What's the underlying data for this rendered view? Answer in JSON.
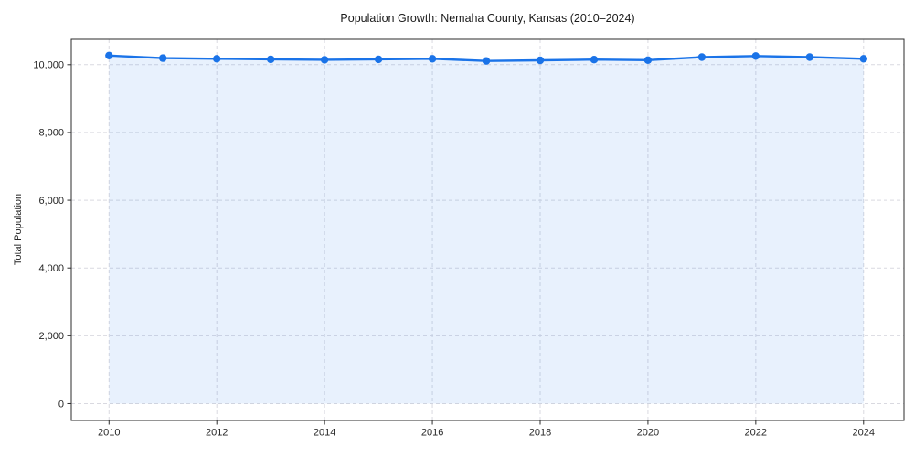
{
  "chart_data": {
    "type": "line",
    "title": "Population Growth: Nemaha County, Kansas (2010–2024)",
    "xlabel": "",
    "ylabel": "Total Population",
    "x": [
      2010,
      2011,
      2012,
      2013,
      2014,
      2015,
      2016,
      2017,
      2018,
      2019,
      2020,
      2021,
      2022,
      2023,
      2024
    ],
    "series": [
      {
        "name": "Total Population",
        "values": [
          10270,
          10195,
          10175,
          10160,
          10145,
          10160,
          10175,
          10110,
          10130,
          10150,
          10135,
          10225,
          10255,
          10225,
          10175
        ]
      }
    ],
    "x_ticks": [
      2010,
      2012,
      2014,
      2016,
      2018,
      2020,
      2022,
      2024
    ],
    "y_ticks": [
      0,
      2000,
      4000,
      6000,
      8000,
      10000
    ],
    "y_tick_labels": [
      "0",
      "2,000",
      "4,000",
      "6,000",
      "8,000",
      "10,000"
    ],
    "xlim": [
      2009.3,
      2024.75
    ],
    "ylim": [
      -500,
      10750
    ],
    "grid": true,
    "grid_style": "dashed",
    "legend": "none",
    "area_fill_to_zero": true,
    "colors": {
      "line": "#1a73e8",
      "fill": "rgba(26, 115, 232, 0.10)",
      "grid": "#d9d9e0",
      "spine": "#2b2b2b",
      "tick_text": "#262626",
      "title_text": "#1a1a1a"
    }
  }
}
